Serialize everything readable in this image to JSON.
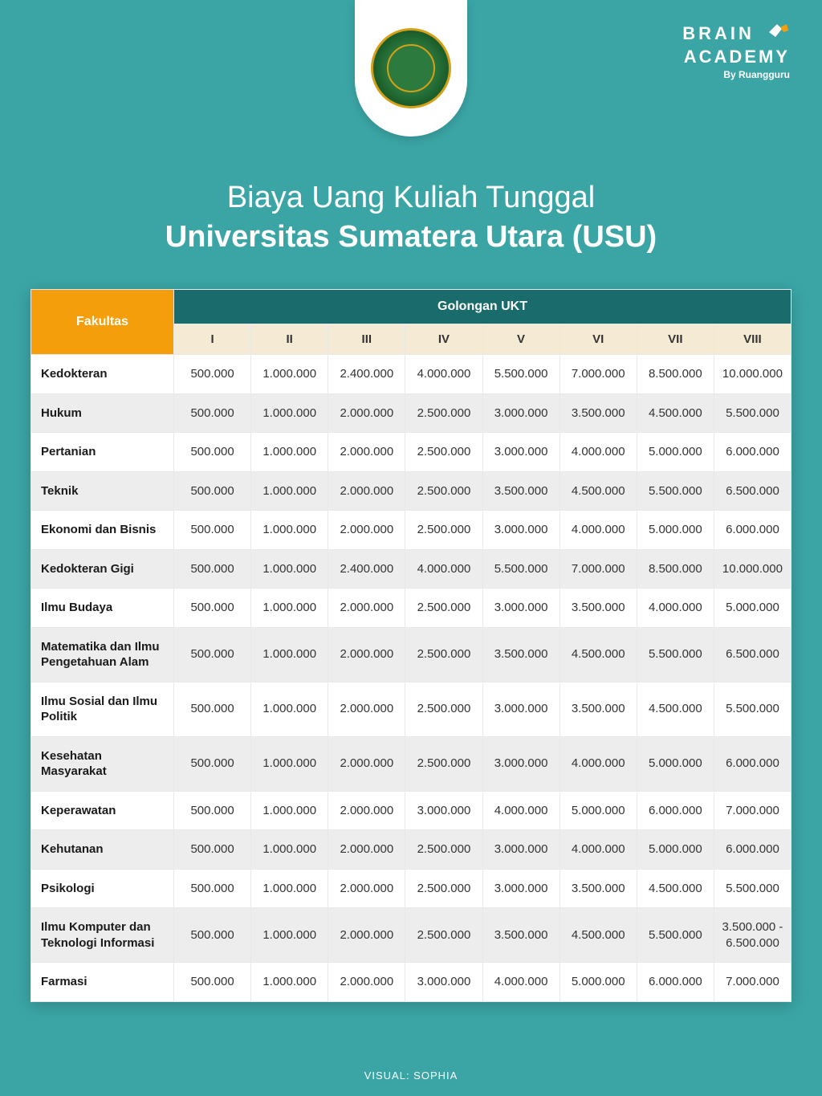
{
  "brand": {
    "line1": "BRAIN",
    "line2": "ACADEMY",
    "sub": "By Ruangguru"
  },
  "title": {
    "line1": "Biaya Uang Kuliah Tunggal",
    "line2": "Universitas Sumatera Utara (USU)"
  },
  "table": {
    "corner_label": "Fakultas",
    "group_header": "Golongan UKT",
    "columns": [
      "I",
      "II",
      "III",
      "IV",
      "V",
      "VI",
      "VII",
      "VIII"
    ],
    "column_header_bg": "#f5ead3",
    "corner_bg": "#f59e0b",
    "group_header_bg": "#1a6b6b",
    "row_alt_bg": "#ededed",
    "row_bg": "#ffffff",
    "rows": [
      {
        "faculty": "Kedokteran",
        "values": [
          "500.000",
          "1.000.000",
          "2.400.000",
          "4.000.000",
          "5.500.000",
          "7.000.000",
          "8.500.000",
          "10.000.000"
        ]
      },
      {
        "faculty": "Hukum",
        "values": [
          "500.000",
          "1.000.000",
          "2.000.000",
          "2.500.000",
          "3.000.000",
          "3.500.000",
          "4.500.000",
          "5.500.000"
        ]
      },
      {
        "faculty": "Pertanian",
        "values": [
          "500.000",
          "1.000.000",
          "2.000.000",
          "2.500.000",
          "3.000.000",
          "4.000.000",
          "5.000.000",
          "6.000.000"
        ]
      },
      {
        "faculty": "Teknik",
        "values": [
          "500.000",
          "1.000.000",
          "2.000.000",
          "2.500.000",
          "3.500.000",
          "4.500.000",
          "5.500.000",
          "6.500.000"
        ]
      },
      {
        "faculty": "Ekonomi dan Bisnis",
        "values": [
          "500.000",
          "1.000.000",
          "2.000.000",
          "2.500.000",
          "3.000.000",
          "4.000.000",
          "5.000.000",
          "6.000.000"
        ]
      },
      {
        "faculty": "Kedokteran Gigi",
        "values": [
          "500.000",
          "1.000.000",
          "2.400.000",
          "4.000.000",
          "5.500.000",
          "7.000.000",
          "8.500.000",
          "10.000.000"
        ]
      },
      {
        "faculty": "Ilmu Budaya",
        "values": [
          "500.000",
          "1.000.000",
          "2.000.000",
          "2.500.000",
          "3.000.000",
          "3.500.000",
          "4.000.000",
          "5.000.000"
        ]
      },
      {
        "faculty": "Matematika dan Ilmu Pengetahuan Alam",
        "values": [
          "500.000",
          "1.000.000",
          "2.000.000",
          "2.500.000",
          "3.500.000",
          "4.500.000",
          "5.500.000",
          "6.500.000"
        ]
      },
      {
        "faculty": "Ilmu Sosial dan Ilmu Politik",
        "values": [
          "500.000",
          "1.000.000",
          "2.000.000",
          "2.500.000",
          "3.000.000",
          "3.500.000",
          "4.500.000",
          "5.500.000"
        ]
      },
      {
        "faculty": "Kesehatan Masyarakat",
        "values": [
          "500.000",
          "1.000.000",
          "2.000.000",
          "2.500.000",
          "3.000.000",
          "4.000.000",
          "5.000.000",
          "6.000.000"
        ]
      },
      {
        "faculty": "Keperawatan",
        "values": [
          "500.000",
          "1.000.000",
          "2.000.000",
          "3.000.000",
          "4.000.000",
          "5.000.000",
          "6.000.000",
          "7.000.000"
        ]
      },
      {
        "faculty": "Kehutanan",
        "values": [
          "500.000",
          "1.000.000",
          "2.000.000",
          "2.500.000",
          "3.000.000",
          "4.000.000",
          "5.000.000",
          "6.000.000"
        ]
      },
      {
        "faculty": "Psikologi",
        "values": [
          "500.000",
          "1.000.000",
          "2.000.000",
          "2.500.000",
          "3.000.000",
          "3.500.000",
          "4.500.000",
          "5.500.000"
        ]
      },
      {
        "faculty": "Ilmu Komputer dan Teknologi Informasi",
        "values": [
          "500.000",
          "1.000.000",
          "2.000.000",
          "2.500.000",
          "3.500.000",
          "4.500.000",
          "5.500.000",
          "3.500.000 - 6.500.000"
        ]
      },
      {
        "faculty": "Farmasi",
        "values": [
          "500.000",
          "1.000.000",
          "2.000.000",
          "3.000.000",
          "4.000.000",
          "5.000.000",
          "6.000.000",
          "7.000.000"
        ]
      }
    ]
  },
  "footer": {
    "credit": "VISUAL: SOPHIA"
  },
  "colors": {
    "page_bg": "#3ba5a5",
    "white": "#ffffff"
  }
}
